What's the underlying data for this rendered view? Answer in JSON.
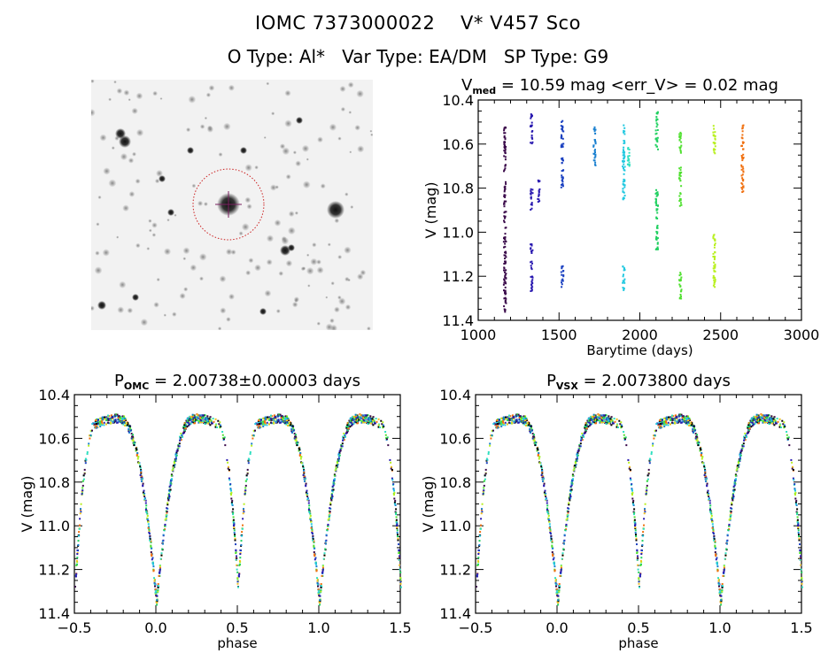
{
  "header": {
    "title_line1": "IOMC 7373000022    V* V457 Sco",
    "title_line2": "O Type: Al*   Var Type: EA/DM   SP Type: G9"
  },
  "image_panel": {
    "description": "DSS finder chart, inverted grayscale, target marked with red dotted circle and crosshair"
  },
  "colors": {
    "frame": "#000000",
    "circle": "#cc2222",
    "crosshair": "#7a2060"
  },
  "chart_data": [
    {
      "type": "scatter",
      "id": "light-curve",
      "title_main": "V",
      "title_sub": "med",
      "title_rest": " = 10.59 mag <err_V> = 0.02 mag",
      "xlabel": "Barytime (days)",
      "ylabel": "V (mag)",
      "xlim": [
        1000,
        3000
      ],
      "ylim": [
        11.4,
        10.4
      ],
      "y_inverted": true,
      "xticks": [
        "1000",
        "1500",
        "2000",
        "2500",
        "3000"
      ],
      "yticks": [
        "10.4",
        "10.6",
        "10.8",
        "11.0",
        "11.2",
        "11.4"
      ],
      "series": [
        {
          "name": "season-1",
          "color": "#3a0a4a",
          "x": 1160,
          "segments": [
            [
              10.5,
              10.72
            ],
            [
              10.76,
              11.36
            ]
          ],
          "bright_cluster": [
            10.55,
            10.65
          ]
        },
        {
          "name": "season-2",
          "color": "#2a1ab0",
          "x": 1325,
          "segments": [
            [
              10.46,
              10.6
            ],
            [
              10.8,
              10.9
            ],
            [
              11.05,
              11.27
            ]
          ]
        },
        {
          "name": "season-2b",
          "color": "#2a1ab0",
          "x": 1370,
          "segments": [
            [
              10.76,
              10.86
            ]
          ]
        },
        {
          "name": "season-3",
          "color": "#1a40c0",
          "x": 1515,
          "segments": [
            [
              10.48,
              10.62
            ],
            [
              10.65,
              10.8
            ],
            [
              11.15,
              11.25
            ]
          ]
        },
        {
          "name": "season-4",
          "color": "#1a80d0",
          "x": 1715,
          "segments": [
            [
              10.52,
              10.7
            ]
          ]
        },
        {
          "name": "season-5",
          "color": "#20c8e0",
          "x": 1895,
          "segments": [
            [
              10.5,
              10.85
            ],
            [
              11.15,
              11.27
            ]
          ]
        },
        {
          "name": "season-5b",
          "color": "#30e0c0",
          "x": 1925,
          "segments": [
            [
              10.6,
              10.7
            ]
          ]
        },
        {
          "name": "season-6",
          "color": "#20d060",
          "x": 2100,
          "segments": [
            [
              10.45,
              10.62
            ],
            [
              10.8,
              11.08
            ]
          ]
        },
        {
          "name": "season-7",
          "color": "#50e030",
          "x": 2245,
          "segments": [
            [
              10.54,
              10.66
            ],
            [
              10.7,
              10.88
            ],
            [
              11.18,
              11.3
            ]
          ]
        },
        {
          "name": "season-8",
          "color": "#b8f020",
          "x": 2455,
          "segments": [
            [
              10.5,
              10.65
            ],
            [
              10.99,
              11.25
            ]
          ]
        },
        {
          "name": "season-9",
          "color": "#f07010",
          "x": 2630,
          "segments": [
            [
              10.51,
              10.62
            ],
            [
              10.64,
              10.82
            ]
          ]
        }
      ]
    },
    {
      "type": "scatter",
      "id": "phase-omc",
      "title_main": "P",
      "title_sub": "OMC",
      "title_rest": " = 2.00738±0.00003 days",
      "period_days": 2.00738,
      "period_err_days": 3e-05,
      "xlabel": "phase",
      "ylabel": "V (mag)",
      "xlim": [
        -0.5,
        1.5
      ],
      "ylim": [
        11.4,
        10.4
      ],
      "y_inverted": true,
      "xticks": [
        "-0.5",
        "0.0",
        "0.5",
        "1.0",
        "1.5"
      ],
      "yticks": [
        "10.4",
        "10.6",
        "10.8",
        "11.0",
        "11.2",
        "11.4"
      ],
      "curve_model": {
        "max_mag": 10.53,
        "primary_min_phase": 0.0,
        "primary_min_mag": 11.32,
        "secondary_min_phase": 0.5,
        "secondary_min_mag": 11.25
      }
    },
    {
      "type": "scatter",
      "id": "phase-vsx",
      "title_main": "P",
      "title_sub": "VSX",
      "title_rest": " = 2.0073800 days",
      "period_days": 2.00738,
      "xlabel": "phase",
      "ylabel": "V (mag)",
      "xlim": [
        -0.5,
        1.5
      ],
      "ylim": [
        11.4,
        10.4
      ],
      "y_inverted": true,
      "xticks": [
        "-0.5",
        "0.0",
        "0.5",
        "1.0",
        "1.5"
      ],
      "yticks": [
        "10.4",
        "10.6",
        "10.8",
        "11.0",
        "11.2",
        "11.4"
      ],
      "curve_model": {
        "max_mag": 10.53,
        "primary_min_phase": 0.0,
        "primary_min_mag": 11.32,
        "secondary_min_phase": 0.5,
        "secondary_min_mag": 11.25
      }
    }
  ]
}
